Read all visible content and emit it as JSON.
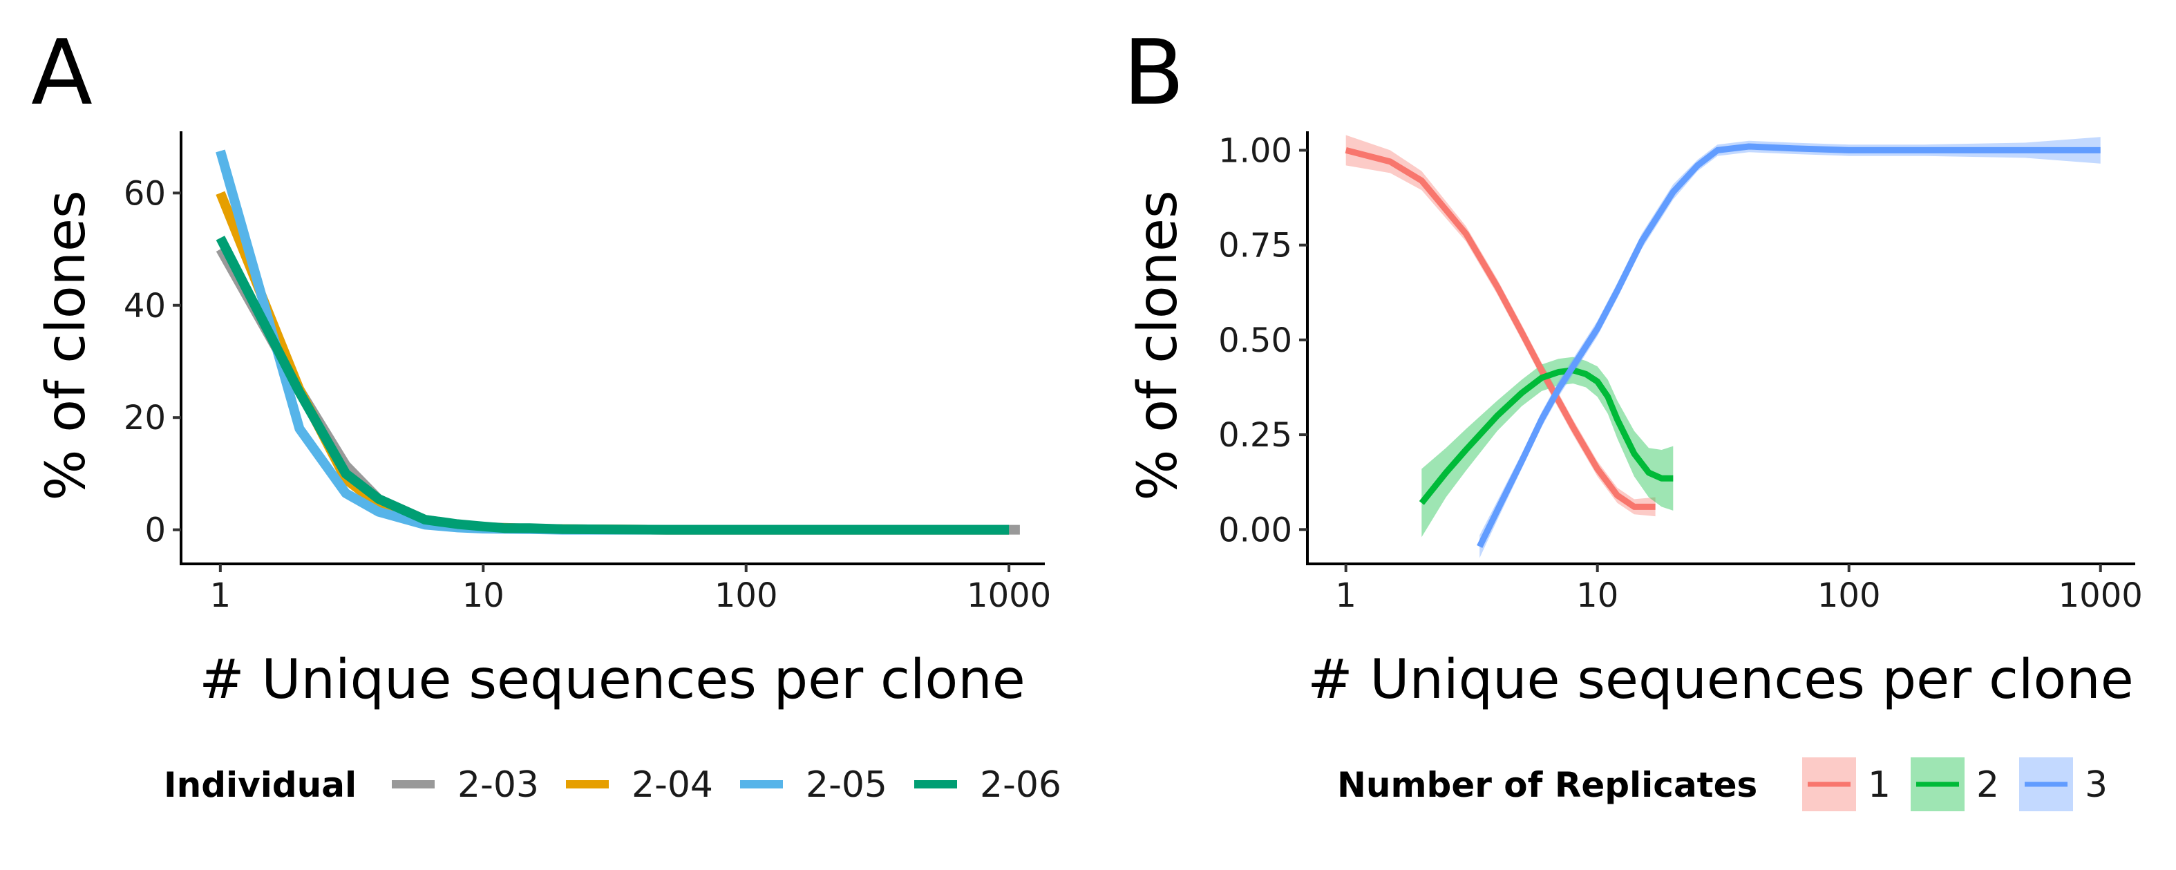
{
  "chart_data": [
    {
      "panel": "A",
      "type": "line",
      "title": "",
      "xlabel": "# Unique sequences per clone",
      "ylabel": "% of clones",
      "xscale": "log",
      "xlim": [
        0.85,
        1250
      ],
      "ylim": [
        -3,
        71
      ],
      "xticks": [
        "1",
        "10",
        "100",
        "1000"
      ],
      "yticks": [
        "0",
        "20",
        "40",
        "60"
      ],
      "grid": false,
      "legend_title": "Individual",
      "legend_position": "bottom",
      "series": [
        {
          "name": "2-03",
          "color": "#999999",
          "x": [
            1,
            2,
            3,
            4,
            6,
            8,
            10,
            15,
            20,
            50,
            100,
            200,
            500,
            1100
          ],
          "y": [
            50,
            25,
            11.5,
            5.5,
            1.8,
            0.9,
            0.5,
            0.2,
            0.1,
            0,
            0,
            0,
            0,
            0
          ]
        },
        {
          "name": "2-04",
          "color": "#E69F00",
          "x": [
            1,
            2,
            3,
            4,
            6,
            8,
            10,
            15,
            20,
            50,
            100,
            200,
            500,
            1000
          ],
          "y": [
            60,
            25,
            9,
            4.5,
            1.5,
            0.7,
            0.4,
            0.2,
            0.1,
            0,
            0,
            0,
            0,
            0
          ]
        },
        {
          "name": "2-05",
          "color": "#56B4E9",
          "x": [
            1,
            2,
            3,
            4,
            6,
            8,
            10,
            15,
            20,
            50,
            100,
            200,
            500,
            1000
          ],
          "y": [
            67.5,
            18,
            6.5,
            3.2,
            0.9,
            0.4,
            0.2,
            0.1,
            0,
            0,
            0,
            0,
            0,
            0
          ]
        },
        {
          "name": "2-06",
          "color": "#009E73",
          "x": [
            1,
            2,
            3,
            4,
            6,
            8,
            10,
            12,
            15,
            20,
            50,
            100,
            200,
            500,
            1000
          ],
          "y": [
            52,
            24.5,
            10,
            5.5,
            1.8,
            1,
            0.6,
            0.3,
            0.3,
            0.1,
            0,
            0,
            0,
            0,
            0
          ]
        }
      ]
    },
    {
      "panel": "B",
      "type": "line",
      "title": "",
      "xlabel": "# Unique sequences per clone",
      "ylabel": "% of clones",
      "xscale": "log",
      "xlim": [
        0.85,
        1250
      ],
      "ylim": [
        -0.045,
        1.05
      ],
      "xticks": [
        "1",
        "10",
        "100",
        "1000"
      ],
      "yticks": [
        "0.00",
        "0.25",
        "0.50",
        "0.75",
        "1.00"
      ],
      "grid": false,
      "legend_title": "Number of Replicates",
      "legend_position": "bottom",
      "series": [
        {
          "name": "1",
          "color": "#F8766D",
          "fill": "#F8766D",
          "x": [
            1,
            1.5,
            2,
            3,
            4,
            5,
            6,
            7,
            8,
            10,
            12,
            14,
            17
          ],
          "y": [
            1.0,
            0.97,
            0.92,
            0.78,
            0.64,
            0.52,
            0.42,
            0.34,
            0.27,
            0.16,
            0.09,
            0.06,
            0.06
          ],
          "band": [
            0.04,
            0.03,
            0.025,
            0.02,
            0.02,
            0.02,
            0.02,
            0.02,
            0.02,
            0.02,
            0.02,
            0.02,
            0.025
          ]
        },
        {
          "name": "2",
          "color": "#00BA38",
          "fill": "#00BA38",
          "x": [
            2,
            2.5,
            3,
            4,
            5,
            6,
            7,
            8,
            9,
            10,
            11,
            12,
            14,
            16,
            18,
            20
          ],
          "y": [
            0.07,
            0.15,
            0.21,
            0.3,
            0.36,
            0.4,
            0.415,
            0.42,
            0.41,
            0.39,
            0.35,
            0.29,
            0.2,
            0.15,
            0.135,
            0.135
          ],
          "band": [
            0.09,
            0.065,
            0.055,
            0.04,
            0.035,
            0.035,
            0.035,
            0.035,
            0.035,
            0.04,
            0.045,
            0.05,
            0.06,
            0.065,
            0.075,
            0.085
          ]
        },
        {
          "name": "3",
          "color": "#619CFF",
          "fill": "#619CFF",
          "x": [
            3.4,
            4,
            5,
            6,
            7,
            8,
            10,
            12,
            15,
            20,
            25,
            30,
            40,
            60,
            100,
            200,
            500,
            1000
          ],
          "y": [
            -0.045,
            0.05,
            0.18,
            0.29,
            0.37,
            0.43,
            0.53,
            0.63,
            0.76,
            0.89,
            0.96,
            1.0,
            1.01,
            1.005,
            1.0,
            1.0,
            1.0,
            1.0
          ],
          "band": [
            0.03,
            0.025,
            0.02,
            0.02,
            0.02,
            0.02,
            0.02,
            0.02,
            0.02,
            0.02,
            0.015,
            0.015,
            0.015,
            0.015,
            0.015,
            0.015,
            0.02,
            0.035
          ]
        }
      ]
    }
  ]
}
